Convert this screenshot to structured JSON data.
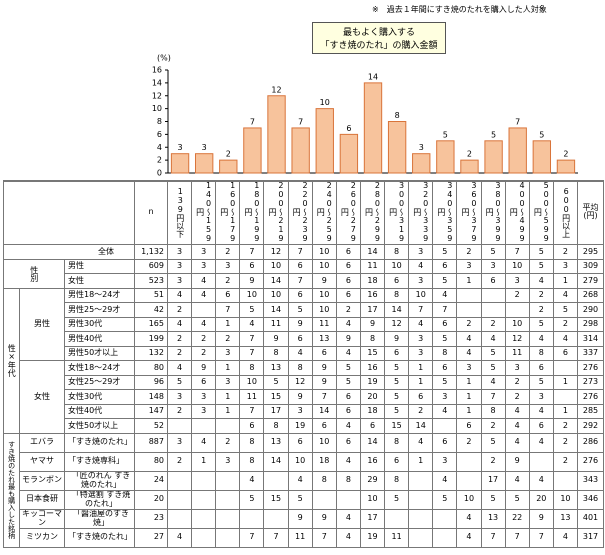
{
  "note": "※　過去１年間にすき焼のたれを購入した人対象",
  "chart_data": {
    "type": "bar",
    "title": [
      "最もよく購入する",
      "「すき焼のたれ」の購入金額"
    ],
    "y_label": "(%)",
    "categories": [
      "139円以下",
      "140～159円",
      "160～179円",
      "180～199円",
      "200～219円",
      "220～239円",
      "240～259円",
      "260～279円",
      "280～299円",
      "300～319円",
      "320～339円",
      "340～359円",
      "360～379円",
      "380～399円",
      "400～499円",
      "500～599円",
      "600円以上"
    ],
    "values": [
      3,
      3,
      2,
      7,
      12,
      7,
      10,
      6,
      14,
      8,
      3,
      5,
      2,
      5,
      7,
      5,
      2
    ],
    "color": "#f7c39c",
    "edge_color": "#d9743a",
    "ylim": [
      0,
      16
    ],
    "yticks": [
      0,
      2,
      4,
      6,
      8,
      10,
      12,
      14,
      16
    ]
  },
  "table": {
    "n_header": "n",
    "avg_header": "平均(円)",
    "total": {
      "label": "全体",
      "n": "1,132",
      "values": [
        3,
        3,
        2,
        7,
        12,
        7,
        10,
        6,
        14,
        8,
        3,
        5,
        2,
        5,
        7,
        5,
        2
      ],
      "avg": 295
    },
    "sections": [
      {
        "label": "性別",
        "groups": [
          {
            "rows": [
              {
                "label": "男性",
                "n": 609,
                "values": [
                  3,
                  3,
                  3,
                  6,
                  10,
                  6,
                  10,
                  6,
                  11,
                  10,
                  4,
                  6,
                  3,
                  3,
                  10,
                  5,
                  3
                ],
                "avg": 309
              },
              {
                "label": "女性",
                "n": 523,
                "values": [
                  3,
                  4,
                  2,
                  9,
                  14,
                  7,
                  9,
                  6,
                  18,
                  6,
                  3,
                  5,
                  1,
                  6,
                  3,
                  4,
                  1
                ],
                "avg": 279
              }
            ]
          }
        ]
      },
      {
        "label": "性×年代",
        "groups": [
          {
            "label": "男性",
            "rows": [
              {
                "label": "男性18～24才",
                "n": 51,
                "values": [
                  4,
                  4,
                  6,
                  10,
                  10,
                  6,
                  10,
                  6,
                  16,
                  8,
                  10,
                  4,
                  null,
                  null,
                  2,
                  2,
                  4
                ],
                "avg": 268
              },
              {
                "label": "男性25～29才",
                "n": 42,
                "values": [
                  2,
                  null,
                  7,
                  5,
                  14,
                  5,
                  10,
                  2,
                  17,
                  14,
                  7,
                  7,
                  null,
                  null,
                  null,
                  2,
                  5
                ],
                "avg": 290
              },
              {
                "label": "男性30代",
                "n": 165,
                "values": [
                  4,
                  4,
                  1,
                  4,
                  11,
                  9,
                  11,
                  4,
                  9,
                  12,
                  4,
                  6,
                  2,
                  2,
                  10,
                  5,
                  2
                ],
                "avg": 298
              },
              {
                "label": "男性40代",
                "n": 199,
                "values": [
                  2,
                  2,
                  2,
                  7,
                  9,
                  6,
                  13,
                  9,
                  8,
                  9,
                  3,
                  5,
                  4,
                  4,
                  12,
                  4,
                  4
                ],
                "avg": 314
              },
              {
                "label": "男性50才以上",
                "n": 132,
                "values": [
                  2,
                  2,
                  3,
                  7,
                  8,
                  4,
                  6,
                  4,
                  15,
                  6,
                  3,
                  8,
                  4,
                  5,
                  11,
                  8,
                  6
                ],
                "avg": 337
              }
            ]
          },
          {
            "label": "女性",
            "rows": [
              {
                "label": "女性18～24才",
                "n": 80,
                "values": [
                  4,
                  9,
                  1,
                  8,
                  13,
                  8,
                  9,
                  5,
                  16,
                  5,
                  1,
                  6,
                  3,
                  5,
                  3,
                  6,
                  null
                ],
                "avg": 276
              },
              {
                "label": "女性25～29才",
                "n": 96,
                "values": [
                  5,
                  6,
                  3,
                  10,
                  5,
                  12,
                  9,
                  5,
                  19,
                  5,
                  1,
                  5,
                  1,
                  4,
                  2,
                  5,
                  1
                ],
                "avg": 273
              },
              {
                "label": "女性30代",
                "n": 148,
                "values": [
                  3,
                  3,
                  1,
                  11,
                  15,
                  9,
                  7,
                  6,
                  20,
                  5,
                  6,
                  3,
                  1,
                  7,
                  2,
                  3,
                  null
                ],
                "avg": 276
              },
              {
                "label": "女性40代",
                "n": 147,
                "values": [
                  2,
                  3,
                  1,
                  7,
                  17,
                  3,
                  14,
                  6,
                  18,
                  5,
                  2,
                  4,
                  1,
                  8,
                  4,
                  4,
                  1
                ],
                "avg": 285
              },
              {
                "label": "女性50才以上",
                "n": 52,
                "values": [
                  null,
                  null,
                  null,
                  6,
                  8,
                  19,
                  6,
                  4,
                  6,
                  15,
                  14,
                  null,
                  6,
                  2,
                  4,
                  6,
                  2
                ],
                "avg": 292
              }
            ]
          }
        ]
      },
      {
        "label": "すき焼のたれ最も購入した銘柄",
        "groups": [
          {
            "label": "エバラ",
            "rows": [
              {
                "label": "「すき焼のたれ」",
                "n": 887,
                "values": [
                  3,
                  4,
                  2,
                  8,
                  13,
                  6,
                  10,
                  6,
                  14,
                  8,
                  4,
                  6,
                  2,
                  5,
                  4,
                  4,
                  2
                ],
                "avg": 286
              }
            ]
          },
          {
            "label": "ヤマサ",
            "rows": [
              {
                "label": "「すき焼専科」",
                "n": 80,
                "values": [
                  2,
                  1,
                  3,
                  8,
                  14,
                  10,
                  18,
                  4,
                  16,
                  6,
                  1,
                  3,
                  null,
                  2,
                  9,
                  null,
                  2
                ],
                "avg": 276
              }
            ]
          },
          {
            "label": "モランボン",
            "rows": [
              {
                "label": "「匠のれん すき焼のたれ」",
                "n": 24,
                "values": [
                  null,
                  null,
                  null,
                  4,
                  null,
                  4,
                  8,
                  8,
                  29,
                  8,
                  null,
                  4,
                  null,
                  17,
                  4,
                  4,
                  null
                ],
                "avg": 343
              }
            ]
          },
          {
            "label": "日本食研",
            "rows": [
              {
                "label": "「特選割 すき焼のたれ」",
                "n": 20,
                "values": [
                  null,
                  null,
                  null,
                  5,
                  15,
                  5,
                  null,
                  null,
                  10,
                  5,
                  null,
                  5,
                  10,
                  5,
                  5,
                  20,
                  10
                ],
                "avg": 346
              }
            ]
          },
          {
            "label": "キッコーマン",
            "rows": [
              {
                "label": "「醤油屋のすき焼」",
                "n": 23,
                "values": [
                  null,
                  null,
                  null,
                  null,
                  null,
                  9,
                  9,
                  4,
                  17,
                  null,
                  null,
                  null,
                  4,
                  13,
                  22,
                  9,
                  13
                ],
                "avg": 401
              }
            ]
          },
          {
            "label": "ミツカン",
            "rows": [
              {
                "label": "「すき焼のたれ」",
                "n": 27,
                "values": [
                  4,
                  null,
                  null,
                  7,
                  7,
                  11,
                  7,
                  4,
                  19,
                  11,
                  null,
                  null,
                  4,
                  7,
                  7,
                  7,
                  4
                ],
                "avg": 317
              }
            ]
          }
        ]
      }
    ]
  }
}
